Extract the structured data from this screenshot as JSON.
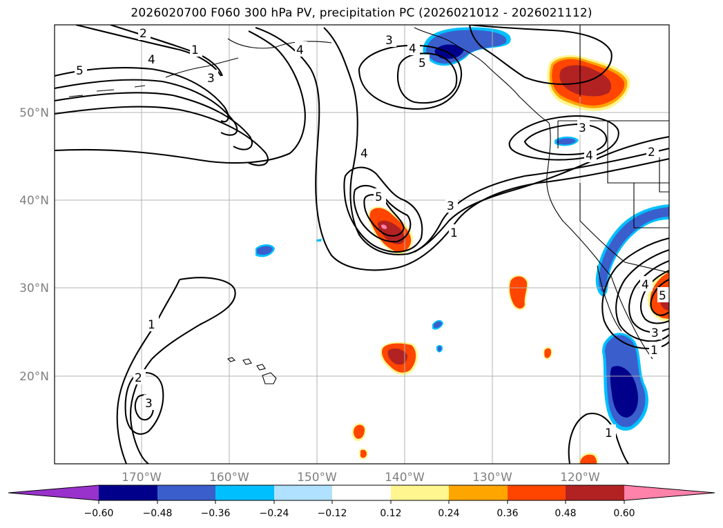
{
  "title": "2026020700 F060 300 hPa PV, precipitation PC (2026021012 - 2026021112)",
  "map": {
    "latitude_labels": [
      "50°N",
      "40°N",
      "30°N",
      "20°N"
    ],
    "longitude_labels": [
      "170°W",
      "160°W",
      "150°W",
      "140°W",
      "130°W",
      "120°W"
    ]
  },
  "pv_contour_labels": [
    "1",
    "2",
    "3",
    "4",
    "5"
  ],
  "colorbar": {
    "tick_labels": [
      "−0.60",
      "−0.48",
      "−0.36",
      "−0.24",
      "−0.12",
      "0.12",
      "0.24",
      "0.36",
      "0.48",
      "0.60"
    ],
    "colors": [
      "#9932cc",
      "#00008b",
      "#3a5fcd",
      "#00bfff",
      "#b0e2ff",
      "#ffffff",
      "#fff68f",
      "#ffa500",
      "#ff4500",
      "#b22222",
      "#ff82ab"
    ]
  }
}
